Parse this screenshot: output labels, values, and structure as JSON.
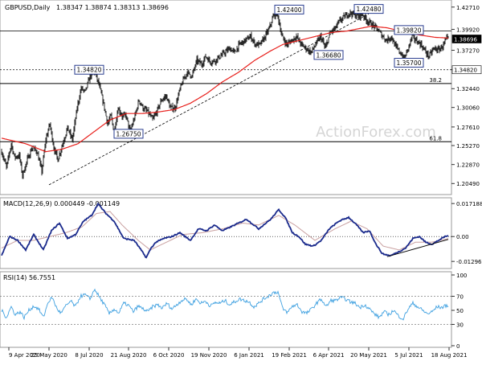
{
  "chart_data": [
    {
      "type": "candlestick",
      "header": {
        "symbol_tf": "GBPUSD,Daily",
        "ohlc": "1.38347 1.38874 1.38313 1.38696"
      },
      "ylim": [
        1.195,
        1.432
      ],
      "yticks": [
        "1.42710",
        "1.39920",
        "1.37270",
        "1.34820",
        "1.32440",
        "1.30060",
        "1.27610",
        "1.25270",
        "1.22870",
        "1.20490"
      ],
      "xticks": [
        "9 Apr 2020",
        "25 May 2020",
        "8 Jul 2020",
        "21 Aug 2020",
        "6 Oct 2020",
        "19 Nov 2020",
        "6 Jan 2021",
        "19 Feb 2021",
        "6 Apr 2021",
        "20 May 2021",
        "5 Jul 2021",
        "18 Aug 2021"
      ],
      "current_price": "1.38696",
      "last_point_box": "1.34820",
      "annotations": [
        {
          "label": "1.42400",
          "x": "19 Feb 2021",
          "y": 1.424
        },
        {
          "label": "1.42480",
          "x": "20 May 2021",
          "y": 1.4248
        },
        {
          "label": "1.39820",
          "x": "5 Jul 2021",
          "y": 1.3982
        },
        {
          "label": "1.36680",
          "x": "6 Apr 2021",
          "y": 1.3668
        },
        {
          "label": "1.35700",
          "x": "5 Jul 2021",
          "y": 1.357
        },
        {
          "label": "1.34820",
          "x": "8 Jul 2020",
          "y": 1.3482
        },
        {
          "label": "1.26750",
          "x": "21 Aug 2020",
          "y": 1.2675
        }
      ],
      "fib_levels": [
        {
          "label": "38.2",
          "y": 1.3308
        },
        {
          "label": "61.8",
          "y": 1.2575
        }
      ],
      "horizontal_levels": [
        1.3969,
        1.3482
      ],
      "trendline": {
        "from": {
          "x": "25 May 2020",
          "y": 1.2032
        },
        "to": {
          "x": "20 May 2021",
          "y": 1.4185
        }
      },
      "close_anchors": [
        [
          0,
          1.245
        ],
        [
          6,
          1.225
        ],
        [
          12,
          1.255
        ],
        [
          16,
          1.238
        ],
        [
          22,
          1.24
        ],
        [
          26,
          1.215
        ],
        [
          32,
          1.235
        ],
        [
          38,
          1.25
        ],
        [
          44,
          1.245
        ],
        [
          50,
          1.22
        ],
        [
          55,
          1.26
        ],
        [
          60,
          1.28
        ],
        [
          65,
          1.25
        ],
        [
          70,
          1.235
        ],
        [
          76,
          1.255
        ],
        [
          82,
          1.275
        ],
        [
          88,
          1.26
        ],
        [
          94,
          1.3
        ],
        [
          99,
          1.325
        ],
        [
          104,
          1.32
        ],
        [
          110,
          1.34
        ],
        [
          116,
          1.345
        ],
        [
          121,
          1.33
        ],
        [
          127,
          1.305
        ],
        [
          132,
          1.28
        ],
        [
          136,
          1.29
        ],
        [
          140,
          1.27
        ],
        [
          145,
          1.3
        ],
        [
          150,
          1.29
        ],
        [
          155,
          1.29
        ],
        [
          160,
          1.27
        ],
        [
          166,
          1.29
        ],
        [
          171,
          1.31
        ],
        [
          176,
          1.3
        ],
        [
          182,
          1.295
        ],
        [
          188,
          1.285
        ],
        [
          193,
          1.295
        ],
        [
          199,
          1.31
        ],
        [
          205,
          1.315
        ],
        [
          210,
          1.3
        ],
        [
          216,
          1.3
        ],
        [
          221,
          1.32
        ],
        [
          226,
          1.335
        ],
        [
          231,
          1.345
        ],
        [
          237,
          1.34
        ],
        [
          243,
          1.36
        ],
        [
          249,
          1.355
        ],
        [
          254,
          1.365
        ],
        [
          260,
          1.358
        ],
        [
          266,
          1.36
        ],
        [
          272,
          1.365
        ],
        [
          278,
          1.37
        ],
        [
          284,
          1.375
        ],
        [
          290,
          1.37
        ],
        [
          296,
          1.38
        ],
        [
          303,
          1.385
        ],
        [
          310,
          1.39
        ],
        [
          316,
          1.38
        ],
        [
          322,
          1.38
        ],
        [
          328,
          1.39
        ],
        [
          333,
          1.4
        ],
        [
          338,
          1.415
        ],
        [
          343,
          1.42
        ],
        [
          349,
          1.39
        ],
        [
          355,
          1.38
        ],
        [
          361,
          1.385
        ],
        [
          367,
          1.39
        ],
        [
          373,
          1.38
        ],
        [
          379,
          1.375
        ],
        [
          385,
          1.37
        ],
        [
          391,
          1.38
        ],
        [
          397,
          1.39
        ],
        [
          403,
          1.375
        ],
        [
          409,
          1.395
        ],
        [
          415,
          1.4
        ],
        [
          421,
          1.41
        ],
        [
          427,
          1.415
        ],
        [
          433,
          1.42
        ],
        [
          438,
          1.418
        ],
        [
          444,
          1.415
        ],
        [
          449,
          1.418
        ],
        [
          455,
          1.41
        ],
        [
          461,
          1.405
        ],
        [
          467,
          1.4
        ],
        [
          473,
          1.392
        ],
        [
          479,
          1.385
        ],
        [
          485,
          1.39
        ],
        [
          490,
          1.378
        ],
        [
          496,
          1.37
        ],
        [
          501,
          1.362
        ],
        [
          506,
          1.375
        ],
        [
          511,
          1.39
        ],
        [
          516,
          1.385
        ],
        [
          522,
          1.38
        ],
        [
          527,
          1.372
        ],
        [
          532,
          1.365
        ],
        [
          538,
          1.375
        ],
        [
          544,
          1.373
        ],
        [
          549,
          1.378
        ],
        [
          554,
          1.387
        ]
      ],
      "sma_anchors": [
        [
          0,
          1.262
        ],
        [
          30,
          1.255
        ],
        [
          55,
          1.245
        ],
        [
          75,
          1.248
        ],
        [
          95,
          1.255
        ],
        [
          115,
          1.27
        ],
        [
          135,
          1.285
        ],
        [
          155,
          1.293
        ],
        [
          175,
          1.293
        ],
        [
          195,
          1.295
        ],
        [
          215,
          1.298
        ],
        [
          235,
          1.306
        ],
        [
          255,
          1.318
        ],
        [
          275,
          1.333
        ],
        [
          295,
          1.345
        ],
        [
          315,
          1.36
        ],
        [
          335,
          1.372
        ],
        [
          350,
          1.38
        ],
        [
          370,
          1.385
        ],
        [
          390,
          1.39
        ],
        [
          410,
          1.395
        ],
        [
          430,
          1.397
        ],
        [
          445,
          1.4
        ],
        [
          460,
          1.403
        ],
        [
          480,
          1.401
        ],
        [
          500,
          1.396
        ],
        [
          520,
          1.392
        ],
        [
          540,
          1.389
        ],
        [
          558,
          1.388
        ]
      ]
    },
    {
      "type": "line",
      "title": "MACD(12,26,9) 0.000449 -0.001149",
      "ylim": [
        -0.015,
        0.0185
      ],
      "yticks": [
        "0.017188",
        "0.00",
        "-0.012962"
      ],
      "series_anchors": {
        "macd": [
          [
            0,
            -0.01
          ],
          [
            10,
            0.0
          ],
          [
            20,
            -0.002
          ],
          [
            30,
            -0.007
          ],
          [
            40,
            0.001
          ],
          [
            52,
            -0.007
          ],
          [
            62,
            0.003
          ],
          [
            72,
            0.007
          ],
          [
            82,
            -0.001
          ],
          [
            92,
            0.001
          ],
          [
            102,
            0.008
          ],
          [
            112,
            0.011
          ],
          [
            120,
            0.017
          ],
          [
            130,
            0.012
          ],
          [
            140,
            0.008
          ],
          [
            152,
            -0.001
          ],
          [
            165,
            -0.002
          ],
          [
            172,
            -0.006
          ],
          [
            180,
            -0.011
          ],
          [
            186,
            -0.006
          ],
          [
            192,
            -0.003
          ],
          [
            202,
            -0.001
          ],
          [
            212,
            0.0
          ],
          [
            222,
            0.002
          ],
          [
            235,
            -0.002
          ],
          [
            245,
            0.004
          ],
          [
            255,
            0.003
          ],
          [
            265,
            0.006
          ],
          [
            275,
            0.003
          ],
          [
            290,
            0.006
          ],
          [
            305,
            0.009
          ],
          [
            320,
            0.004
          ],
          [
            335,
            0.009
          ],
          [
            345,
            0.014
          ],
          [
            353,
            0.01
          ],
          [
            362,
            0.002
          ],
          [
            370,
            0.0
          ],
          [
            378,
            -0.004
          ],
          [
            388,
            -0.005
          ],
          [
            398,
            -0.002
          ],
          [
            408,
            0.004
          ],
          [
            420,
            0.008
          ],
          [
            432,
            0.01
          ],
          [
            442,
            0.006
          ],
          [
            450,
            0.002
          ],
          [
            458,
            0.003
          ],
          [
            466,
            -0.004
          ],
          [
            474,
            -0.009
          ],
          [
            484,
            -0.01
          ],
          [
            494,
            -0.008
          ],
          [
            503,
            -0.006
          ],
          [
            512,
            -0.001
          ],
          [
            520,
            0.0
          ],
          [
            528,
            -0.003
          ],
          [
            536,
            -0.004
          ],
          [
            544,
            -0.002
          ],
          [
            552,
            0.0
          ],
          [
            556,
            0.0004
          ]
        ],
        "signal": [
          [
            0,
            -0.006
          ],
          [
            20,
            -0.002
          ],
          [
            40,
            -0.002
          ],
          [
            60,
            0.0
          ],
          [
            80,
            0.002
          ],
          [
            100,
            0.005
          ],
          [
            118,
            0.012
          ],
          [
            135,
            0.013
          ],
          [
            150,
            0.006
          ],
          [
            170,
            -0.002
          ],
          [
            185,
            -0.007
          ],
          [
            205,
            -0.003
          ],
          [
            225,
            0.001
          ],
          [
            250,
            0.002
          ],
          [
            275,
            0.004
          ],
          [
            300,
            0.007
          ],
          [
            320,
            0.006
          ],
          [
            345,
            0.011
          ],
          [
            365,
            0.006
          ],
          [
            390,
            -0.002
          ],
          [
            415,
            0.004
          ],
          [
            435,
            0.008
          ],
          [
            455,
            0.004
          ],
          [
            475,
            -0.005
          ],
          [
            495,
            -0.007
          ],
          [
            515,
            -0.003
          ],
          [
            535,
            -0.003
          ],
          [
            556,
            -0.0011
          ]
        ]
      },
      "trendline": {
        "from": {
          "i": 480,
          "y": -0.0105
        },
        "to": {
          "i": 556,
          "y": -0.0015
        }
      }
    },
    {
      "type": "line",
      "title": "RSI(14) 56.7551",
      "ylim": [
        0,
        100
      ],
      "yticks": [
        "100",
        "70",
        "50",
        "30",
        "0"
      ],
      "series_anchors": {
        "rsi": [
          [
            0,
            50
          ],
          [
            6,
            40
          ],
          [
            12,
            55
          ],
          [
            17,
            44
          ],
          [
            23,
            48
          ],
          [
            28,
            40
          ],
          [
            34,
            50
          ],
          [
            40,
            56
          ],
          [
            46,
            52
          ],
          [
            52,
            40
          ],
          [
            58,
            62
          ],
          [
            63,
            68
          ],
          [
            69,
            52
          ],
          [
            74,
            46
          ],
          [
            80,
            56
          ],
          [
            86,
            63
          ],
          [
            92,
            55
          ],
          [
            98,
            70
          ],
          [
            104,
            72
          ],
          [
            110,
            66
          ],
          [
            116,
            80
          ],
          [
            122,
            68
          ],
          [
            128,
            58
          ],
          [
            134,
            45
          ],
          [
            140,
            52
          ],
          [
            146,
            46
          ],
          [
            152,
            60
          ],
          [
            158,
            57
          ],
          [
            164,
            48
          ],
          [
            170,
            56
          ],
          [
            176,
            52
          ],
          [
            182,
            48
          ],
          [
            188,
            55
          ],
          [
            194,
            58
          ],
          [
            200,
            53
          ],
          [
            206,
            60
          ],
          [
            212,
            52
          ],
          [
            218,
            58
          ],
          [
            224,
            64
          ],
          [
            230,
            66
          ],
          [
            236,
            58
          ],
          [
            242,
            66
          ],
          [
            248,
            60
          ],
          [
            254,
            63
          ],
          [
            260,
            56
          ],
          [
            266,
            61
          ],
          [
            272,
            60
          ],
          [
            278,
            64
          ],
          [
            284,
            58
          ],
          [
            290,
            62
          ],
          [
            296,
            66
          ],
          [
            302,
            64
          ],
          [
            308,
            62
          ],
          [
            314,
            55
          ],
          [
            320,
            60
          ],
          [
            326,
            66
          ],
          [
            332,
            70
          ],
          [
            338,
            75
          ],
          [
            344,
            76
          ],
          [
            350,
            52
          ],
          [
            356,
            47
          ],
          [
            362,
            56
          ],
          [
            368,
            58
          ],
          [
            374,
            48
          ],
          [
            380,
            46
          ],
          [
            386,
            52
          ],
          [
            392,
            60
          ],
          [
            398,
            66
          ],
          [
            404,
            55
          ],
          [
            410,
            64
          ],
          [
            416,
            64
          ],
          [
            422,
            68
          ],
          [
            428,
            66
          ],
          [
            434,
            62
          ],
          [
            440,
            60
          ],
          [
            446,
            54
          ],
          [
            452,
            58
          ],
          [
            458,
            52
          ],
          [
            464,
            45
          ],
          [
            470,
            40
          ],
          [
            476,
            48
          ],
          [
            482,
            44
          ],
          [
            488,
            50
          ],
          [
            494,
            42
          ],
          [
            500,
            38
          ],
          [
            506,
            52
          ],
          [
            512,
            60
          ],
          [
            518,
            55
          ],
          [
            524,
            50
          ],
          [
            530,
            45
          ],
          [
            536,
            48
          ],
          [
            542,
            55
          ],
          [
            548,
            54
          ],
          [
            554,
            57
          ]
        ]
      }
    }
  ],
  "watermark": "ActionForex.com"
}
